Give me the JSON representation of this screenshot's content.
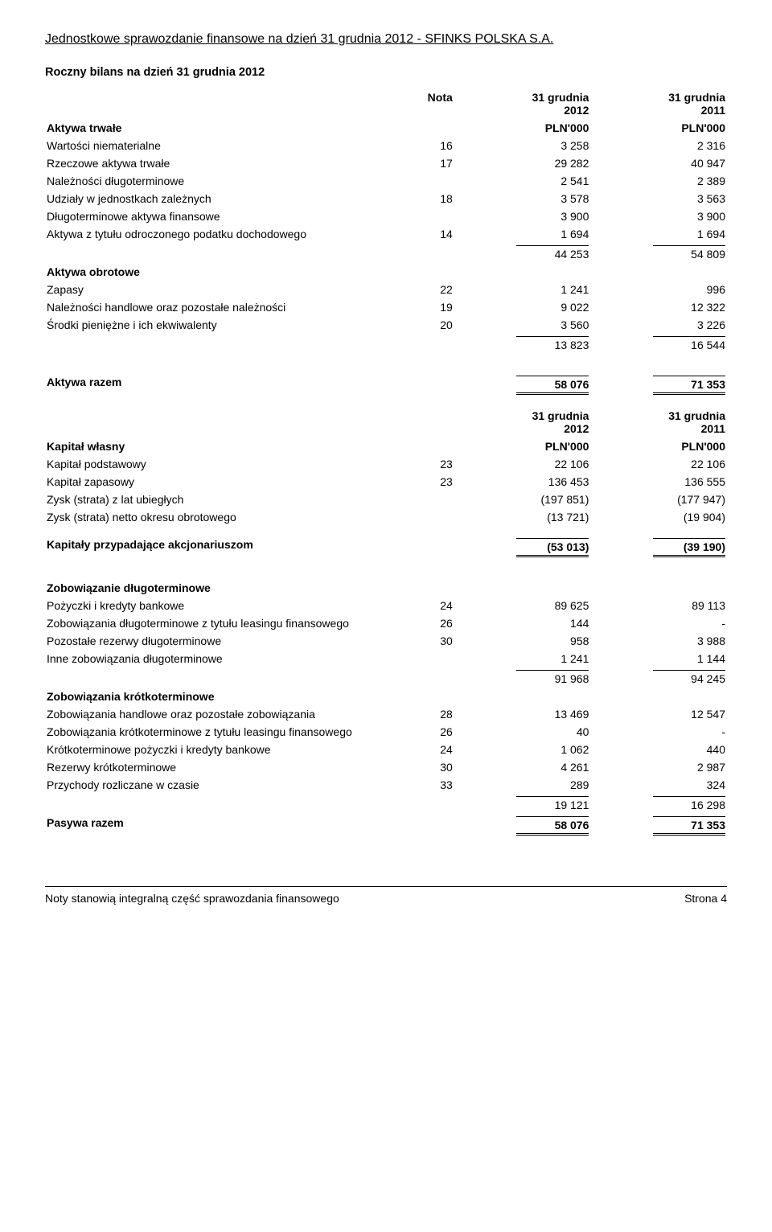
{
  "doc_title": "Jednostkowe sprawozdanie finansowe na dzień 31 grudnia 2012 - SFINKS POLSKA S.A.",
  "balance_title": "Roczny bilans na dzień 31 grudnia 2012",
  "headers": {
    "nota": "Nota",
    "c1_l1": "31 grudnia",
    "c1_l2": "2012",
    "c2_l1": "31 grudnia",
    "c2_l2": "2011",
    "unit": "PLN'000"
  },
  "g_fixed": "Aktywa trwałe",
  "r_intangible": {
    "label": "Wartości niematerialne",
    "n": "16",
    "v1": "3 258",
    "v2": "2 316"
  },
  "r_ppe": {
    "label": "Rzeczowe aktywa trwałe",
    "n": "17",
    "v1": "29 282",
    "v2": "40 947"
  },
  "r_ltrec": {
    "label": "Należności długoterminowe",
    "n": "",
    "v1": "2 541",
    "v2": "2 389"
  },
  "r_shares": {
    "label": "Udziały w jednostkach zależnych",
    "n": "18",
    "v1": "3 578",
    "v2": "3 563"
  },
  "r_ltfin": {
    "label": "Długoterminowe aktywa finansowe",
    "n": "",
    "v1": "3 900",
    "v2": "3 900"
  },
  "r_deftax": {
    "label": "Aktywa z tytułu odroczonego podatku dochodowego",
    "n": "14",
    "v1": "1 694",
    "v2": "1 694"
  },
  "sub_fixed": {
    "v1": "44 253",
    "v2": "54 809"
  },
  "g_current": "Aktywa obrotowe",
  "r_inv": {
    "label": "Zapasy",
    "n": "22",
    "v1": "1 241",
    "v2": "996"
  },
  "r_trade": {
    "label": "Należności handlowe oraz pozostałe należności",
    "n": "19",
    "v1": "9 022",
    "v2": "12 322"
  },
  "r_cash": {
    "label": "Środki pieniężne i ich ekwiwalenty",
    "n": "20",
    "v1": "3 560",
    "v2": "3 226"
  },
  "sub_current": {
    "v1": "13 823",
    "v2": "16 544"
  },
  "assets_total": {
    "label": "Aktywa razem",
    "v1": "58 076",
    "v2": "71 353"
  },
  "g_equity": "Kapitał własny",
  "r_share": {
    "label": "Kapitał podstawowy",
    "n": "23",
    "v1": "22 106",
    "v2": "22 106"
  },
  "r_reserve": {
    "label": "Kapitał zapasowy",
    "n": "23",
    "v1": "136 453",
    "v2": "136 555"
  },
  "r_retained": {
    "label": "Zysk (strata) z lat ubiegłych",
    "n": "",
    "v1": "(197 851)",
    "v2": "(177 947)"
  },
  "r_netres": {
    "label": "Zysk (strata) netto okresu obrotowego",
    "n": "",
    "v1": "(13 721)",
    "v2": "(19 904)"
  },
  "equity_attr": {
    "label": "Kapitały przypadające akcjonariuszom",
    "v1": "(53 013)",
    "v2": "(39 190)"
  },
  "g_ltliab": "Zobowiązanie długoterminowe",
  "r_ltloans": {
    "label": "Pożyczki i kredyty bankowe",
    "n": "24",
    "v1": "89 625",
    "v2": "89 113"
  },
  "r_ltlease": {
    "label": "Zobowiązania długoterminowe z tytułu leasingu finansowego",
    "n": "26",
    "v1": "144",
    "v2": "-"
  },
  "r_ltprov": {
    "label": "Pozostałe rezerwy długoterminowe",
    "n": "30",
    "v1": "958",
    "v2": "3 988"
  },
  "r_ltother": {
    "label": "Inne zobowiązania długoterminowe",
    "n": "",
    "v1": "1 241",
    "v2": "1 144"
  },
  "sub_ltliab": {
    "v1": "91 968",
    "v2": "94 245"
  },
  "g_stliab": "Zobowiązania krótkoterminowe",
  "r_sttrade": {
    "label": "Zobowiązania handlowe oraz pozostałe zobowiązania",
    "n": "28",
    "v1": "13 469",
    "v2": "12 547"
  },
  "r_stlease": {
    "label": "Zobowiązania krótkoterminowe z tytułu leasingu finansowego",
    "n": "26",
    "v1": "40",
    "v2": "-"
  },
  "r_stloans": {
    "label": "Krótkoterminowe pożyczki i kredyty bankowe",
    "n": "24",
    "v1": "1 062",
    "v2": "440"
  },
  "r_stprov": {
    "label": "Rezerwy krótkoterminowe",
    "n": "30",
    "v1": "4 261",
    "v2": "2 987"
  },
  "r_defer": {
    "label": "Przychody rozliczane w czasie",
    "n": "33",
    "v1": "289",
    "v2": "324"
  },
  "sub_stliab": {
    "v1": "19 121",
    "v2": "16 298"
  },
  "liab_total": {
    "label": "Pasywa razem",
    "v1": "58 076",
    "v2": "71 353"
  },
  "footer_left": "Noty stanowią integralną część sprawozdania finansowego",
  "footer_right": "Strona 4"
}
